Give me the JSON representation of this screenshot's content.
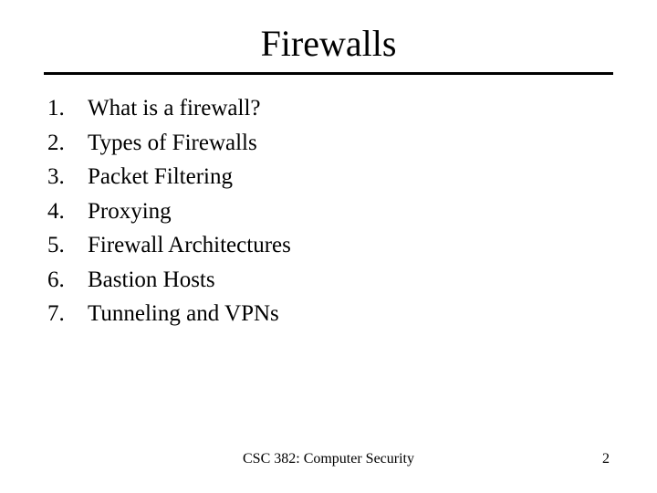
{
  "title": "Firewalls",
  "title_fontsize": 40,
  "list_fontsize": 25,
  "footer_fontsize": 16,
  "background_color": "#ffffff",
  "text_color": "#000000",
  "divider_color": "#000000",
  "divider_thickness": 3,
  "items": [
    {
      "n": "1.",
      "text": "What is a firewall?"
    },
    {
      "n": "2.",
      "text": "Types of Firewalls"
    },
    {
      "n": "3.",
      "text": "Packet Filtering"
    },
    {
      "n": "4.",
      "text": "Proxying"
    },
    {
      "n": "5.",
      "text": "Firewall Architectures"
    },
    {
      "n": "6.",
      "text": "Bastion Hosts"
    },
    {
      "n": "7.",
      "text": "Tunneling and VPNs"
    }
  ],
  "footer": {
    "course": "CSC 382: Computer Security",
    "page": "2"
  }
}
